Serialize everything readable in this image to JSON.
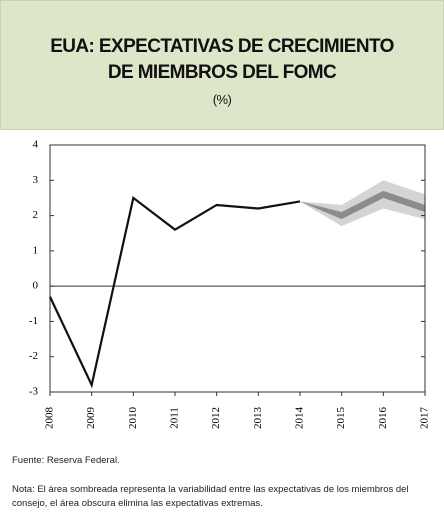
{
  "chart_data": {
    "type": "line",
    "title_lines": [
      "EUA: EXPECTATIVAS DE CRECIMIENTO",
      "DE MIEMBROS DEL FOMC"
    ],
    "subtitle": "(%)",
    "categories": [
      "2008",
      "2009",
      "2010",
      "2011",
      "2012",
      "2013",
      "2014",
      "2015",
      "2016",
      "2017"
    ],
    "series": [
      {
        "color": "#111111",
        "values": [
          -0.3,
          -2.8,
          2.5,
          1.6,
          2.3,
          2.2,
          2.4,
          null,
          null,
          null
        ]
      }
    ],
    "bands": [
      {
        "color": "#d4d4d4",
        "low": [
          null,
          null,
          null,
          null,
          null,
          null,
          2.4,
          1.7,
          2.2,
          1.9
        ],
        "high": [
          null,
          null,
          null,
          null,
          null,
          null,
          2.4,
          2.3,
          3.0,
          2.6
        ]
      },
      {
        "color": "#8c8c8c",
        "low": [
          null,
          null,
          null,
          null,
          null,
          null,
          2.4,
          1.9,
          2.5,
          2.1
        ],
        "high": [
          null,
          null,
          null,
          null,
          null,
          null,
          2.4,
          2.1,
          2.7,
          2.3
        ]
      }
    ],
    "ylim": [
      -3,
      4
    ],
    "yticks": [
      -3,
      -2,
      -1,
      0,
      1,
      2,
      3,
      4
    ],
    "source": "Fuente: Reserva Federal.",
    "note": "Nota: El área sombreada representa la variabilidad entre las expectativas de los miembros del consejo, el área obscura elimina las expectativas extremas."
  }
}
